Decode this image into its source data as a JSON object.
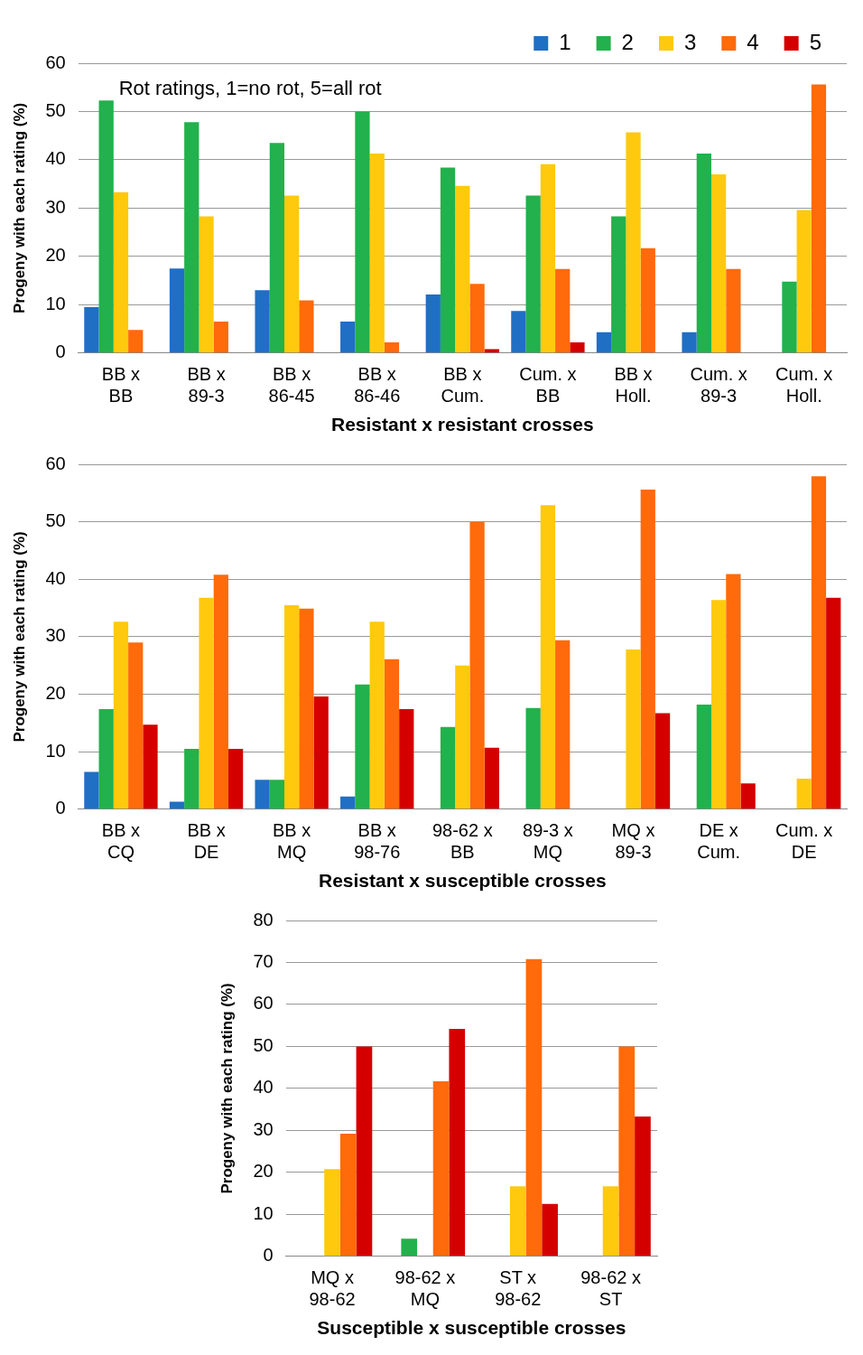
{
  "chart_data": [
    {
      "type": "bar",
      "xlabel": "Resistant x resistant crosses",
      "ylabel": "Progeny with each rating (%)",
      "annotations": [
        "Rot ratings, 1=no rot, 5=all rot"
      ],
      "categories": [
        "BB x\nBB",
        "BB x\n89-3",
        "BB x\n86-45",
        "BB x\n86-46",
        "BB x\nCum.",
        "Cum. x\nBB",
        "BB x\nHoll.",
        "Cum. x\n89-3",
        "Cum. x\nHoll."
      ],
      "ylim": [
        0,
        60
      ],
      "yticks": [
        0,
        10,
        20,
        30,
        40,
        50,
        60
      ],
      "grid": "y",
      "legend": "top right",
      "series": [
        {
          "name": "1",
          "color": "#1f6fc5",
          "values": [
            9.5,
            17.5,
            13.0,
            6.5,
            12.1,
            8.7,
            4.3,
            4.3,
            0
          ]
        },
        {
          "name": "2",
          "color": "#22b14c",
          "values": [
            52.3,
            47.8,
            43.5,
            50.0,
            38.4,
            32.6,
            28.3,
            41.3,
            14.8
          ]
        },
        {
          "name": "3",
          "color": "#ffc90e",
          "values": [
            33.3,
            28.3,
            32.6,
            41.3,
            34.6,
            39.1,
            45.7,
            37.0,
            29.6
          ]
        },
        {
          "name": "4",
          "color": "#ff6a0a",
          "values": [
            4.8,
            6.5,
            10.9,
            2.2,
            14.3,
            17.4,
            21.7,
            17.4,
            55.6
          ]
        },
        {
          "name": "5",
          "color": "#d40000",
          "values": [
            0,
            0,
            0,
            0,
            0.8,
            2.2,
            0,
            0,
            0
          ]
        }
      ]
    },
    {
      "type": "bar",
      "xlabel": "Resistant x susceptible crosses",
      "ylabel": "Progeny with each rating (%)",
      "categories": [
        "BB x\nCQ",
        "BB x\nDE",
        "BB x\nMQ",
        "BB x\n98-76",
        "98-62 x\nBB",
        "89-3 x\nMQ",
        "MQ x\n89-3",
        "DE x\nCum.",
        "Cum. x\nDE"
      ],
      "ylim": [
        0,
        60
      ],
      "yticks": [
        0,
        10,
        20,
        30,
        40,
        50,
        60
      ],
      "grid": "y",
      "series": [
        {
          "color": "#1f6fc5",
          "values": [
            6.5,
            1.3,
            5.1,
            2.2,
            0,
            0,
            0,
            0,
            0
          ]
        },
        {
          "color": "#22b14c",
          "values": [
            17.4,
            10.5,
            5.1,
            21.7,
            14.3,
            17.6,
            0,
            18.2,
            0
          ]
        },
        {
          "color": "#ffc90e",
          "values": [
            32.6,
            36.8,
            35.5,
            32.6,
            25.0,
            52.9,
            27.8,
            36.4,
            5.3
          ]
        },
        {
          "color": "#ff6a0a",
          "values": [
            29.0,
            40.8,
            34.9,
            26.1,
            50.0,
            29.4,
            55.6,
            40.9,
            57.9
          ]
        },
        {
          "color": "#d40000",
          "values": [
            14.7,
            10.5,
            19.6,
            17.4,
            10.7,
            0,
            16.7,
            4.5,
            36.8
          ]
        }
      ]
    },
    {
      "type": "bar",
      "xlabel": "Susceptible x susceptible crosses",
      "ylabel": "Progeny with each rating (%)",
      "categories": [
        "MQ x\n98-62",
        "98-62 x\nMQ",
        "ST x\n98-62",
        "98-62 x\nST"
      ],
      "ylim": [
        0,
        80
      ],
      "yticks": [
        0,
        10,
        20,
        30,
        40,
        50,
        60,
        70,
        80
      ],
      "grid": "y",
      "series": [
        {
          "color": "#1f6fc5",
          "values": [
            0,
            0,
            0,
            0
          ]
        },
        {
          "color": "#22b14c",
          "values": [
            0,
            4.2,
            0,
            0
          ]
        },
        {
          "color": "#ffc90e",
          "values": [
            20.8,
            0,
            16.7,
            16.7
          ]
        },
        {
          "color": "#ff6a0a",
          "values": [
            29.2,
            41.7,
            70.8,
            50.0
          ]
        },
        {
          "color": "#d40000",
          "values": [
            50.0,
            54.2,
            12.5,
            33.3
          ]
        }
      ]
    }
  ]
}
